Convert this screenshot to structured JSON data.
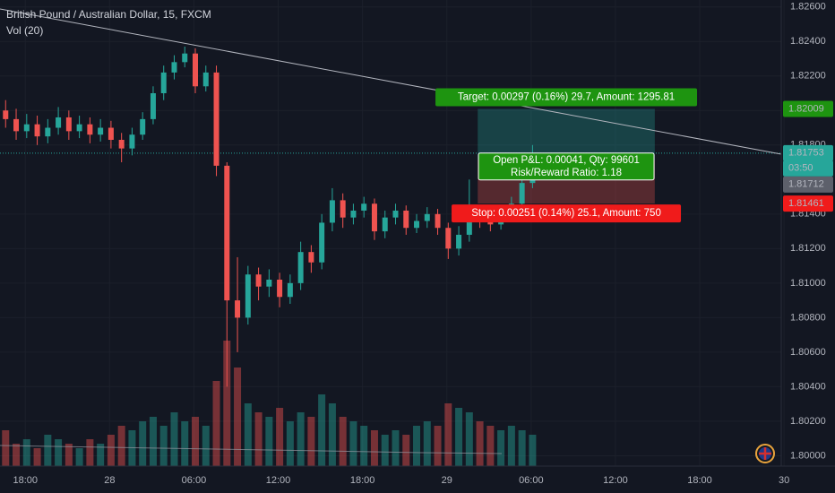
{
  "chart_data": {
    "type": "candlestick",
    "title": "British Pound / Australian Dollar, 15, FXCM",
    "indicator": "Vol (20)",
    "up_color": "#26a69a",
    "down_color": "#ef5350",
    "grid": true,
    "x": [
      16.6,
      17.35,
      18.1,
      18.85,
      19.6,
      20.35,
      21.1,
      21.85,
      22.6,
      23.35,
      24.1,
      24.85,
      25.6,
      26.35,
      27.1,
      27.85,
      28.6,
      29.35,
      30.1,
      30.85,
      31.6,
      32.35,
      33.1,
      33.85,
      34.6,
      35.35,
      36.1,
      36.85,
      37.6,
      38.35,
      39.1,
      39.85,
      40.6,
      41.35,
      42.1,
      42.85,
      43.6,
      44.35,
      45.1,
      45.85,
      46.6,
      47.35,
      48.1,
      48.85,
      49.6,
      50.35,
      51.1,
      51.85,
      52.6,
      53.35,
      54.1
    ],
    "open": [
      1.82,
      1.8195,
      1.8188,
      1.8192,
      1.8185,
      1.819,
      1.8196,
      1.8188,
      1.8192,
      1.8186,
      1.819,
      1.8183,
      1.8178,
      1.8186,
      1.8195,
      1.821,
      1.8222,
      1.8228,
      1.8233,
      1.8214,
      1.8222,
      1.8168,
      1.809,
      1.808,
      1.8105,
      1.8098,
      1.8102,
      1.8092,
      1.81,
      1.8118,
      1.8112,
      1.8135,
      1.8148,
      1.8138,
      1.8142,
      1.8146,
      1.813,
      1.8138,
      1.8142,
      1.8132,
      1.8136,
      1.814,
      1.8132,
      1.812,
      1.8128,
      1.814,
      1.8136,
      1.8134,
      1.814,
      1.8146,
      1.8158
    ],
    "high": [
      1.8206,
      1.8201,
      1.8198,
      1.8197,
      1.8195,
      1.8202,
      1.82,
      1.8197,
      1.8196,
      1.8195,
      1.8194,
      1.8187,
      1.819,
      1.8199,
      1.8214,
      1.8226,
      1.8232,
      1.8237,
      1.8236,
      1.8226,
      1.8226,
      1.817,
      1.8115,
      1.811,
      1.8109,
      1.8108,
      1.8106,
      1.8105,
      1.8124,
      1.8122,
      1.814,
      1.8155,
      1.8152,
      1.8146,
      1.815,
      1.8149,
      1.8142,
      1.8146,
      1.8145,
      1.814,
      1.8144,
      1.8143,
      1.8135,
      1.8133,
      1.816,
      1.8144,
      1.814,
      1.8144,
      1.815,
      1.8162,
      1.818
    ],
    "low": [
      1.819,
      1.8183,
      1.8184,
      1.818,
      1.8181,
      1.8186,
      1.8183,
      1.8184,
      1.8181,
      1.8182,
      1.8178,
      1.817,
      1.8174,
      1.8183,
      1.8192,
      1.8206,
      1.8218,
      1.8225,
      1.821,
      1.8211,
      1.8162,
      1.804,
      1.806,
      1.8076,
      1.809,
      1.8092,
      1.8086,
      1.8088,
      1.8096,
      1.8106,
      1.8108,
      1.813,
      1.8132,
      1.8134,
      1.8138,
      1.8125,
      1.8126,
      1.8134,
      1.8128,
      1.8129,
      1.8132,
      1.8128,
      1.8114,
      1.8116,
      1.8124,
      1.8132,
      1.813,
      1.8131,
      1.8137,
      1.8143,
      1.8155
    ],
    "close": [
      1.8195,
      1.8188,
      1.8192,
      1.8185,
      1.819,
      1.8196,
      1.8188,
      1.8192,
      1.8186,
      1.819,
      1.8183,
      1.8178,
      1.8186,
      1.8195,
      1.821,
      1.8222,
      1.8228,
      1.8233,
      1.8214,
      1.8222,
      1.8168,
      1.809,
      1.808,
      1.8105,
      1.8098,
      1.8102,
      1.8092,
      1.81,
      1.8118,
      1.8112,
      1.8135,
      1.8148,
      1.8138,
      1.8142,
      1.8146,
      1.813,
      1.8138,
      1.8142,
      1.8132,
      1.8136,
      1.814,
      1.8132,
      1.812,
      1.8128,
      1.814,
      1.8136,
      1.8134,
      1.814,
      1.8146,
      1.8158,
      1.8175
    ],
    "volume": [
      40,
      25,
      30,
      20,
      35,
      30,
      25,
      20,
      30,
      25,
      35,
      45,
      40,
      50,
      55,
      45,
      60,
      50,
      55,
      45,
      95,
      140,
      110,
      70,
      60,
      55,
      65,
      50,
      60,
      55,
      80,
      70,
      55,
      50,
      45,
      40,
      35,
      40,
      35,
      45,
      50,
      45,
      70,
      65,
      60,
      50,
      45,
      40,
      45,
      40,
      35
    ],
    "xlim": [
      16.2,
      71.8
    ],
    "xticks": [
      {
        "value": 18,
        "label": "18:00"
      },
      {
        "value": 24,
        "label": "28"
      },
      {
        "value": 30,
        "label": "06:00"
      },
      {
        "value": 36,
        "label": "12:00"
      },
      {
        "value": 42,
        "label": "18:00"
      },
      {
        "value": 48,
        "label": "29"
      },
      {
        "value": 54,
        "label": "06:00"
      },
      {
        "value": 60,
        "label": "12:00"
      },
      {
        "value": 66,
        "label": "18:00"
      },
      {
        "value": 72,
        "label": "30"
      }
    ],
    "ylim": [
      1.7994,
      1.8264
    ],
    "yticks": [
      {
        "value": 1.826,
        "label": "1.82600"
      },
      {
        "value": 1.824,
        "label": "1.82400"
      },
      {
        "value": 1.822,
        "label": "1.82200"
      },
      {
        "value": 1.82,
        "label": "1.82000"
      },
      {
        "value": 1.818,
        "label": "1.81800"
      },
      {
        "value": 1.814,
        "label": "1.81400"
      },
      {
        "value": 1.812,
        "label": "1.81200"
      },
      {
        "value": 1.81,
        "label": "1.81000"
      },
      {
        "value": 1.808,
        "label": "1.80800"
      },
      {
        "value": 1.806,
        "label": "1.80600"
      },
      {
        "value": 1.804,
        "label": "1.80400"
      },
      {
        "value": 1.802,
        "label": "1.80200"
      },
      {
        "value": 1.8,
        "label": "1.80000"
      }
    ],
    "last_price": 1.81753,
    "countdown": "03:50",
    "position": {
      "x_range": [
        50.2,
        62.8
      ],
      "target": 1.82009,
      "entry": 1.81712,
      "stop": 1.81461,
      "target_label": "Target: 0.00297 (0.16%) 29.7, Amount: 1295.81",
      "pnl_label": "Open P&L: 0.00041, Qty: 99601",
      "rr_label": "Risk/Reward Ratio: 1.18",
      "stop_label": "Stop: 0.00251 (0.14%) 25.1, Amount: 750"
    }
  }
}
